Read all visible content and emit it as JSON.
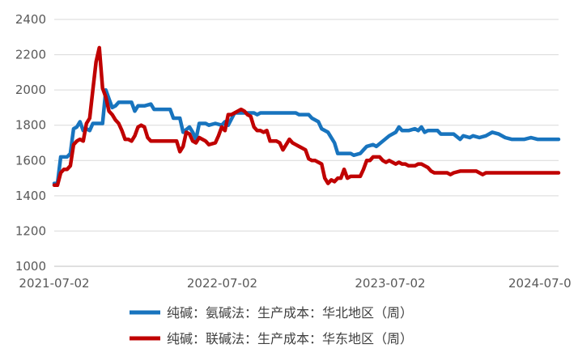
{
  "chart_data": {
    "type": "line",
    "x_ticks": [
      "2021-07-02",
      "2022-07-02",
      "2023-07-02",
      "2024-07-0"
    ],
    "y_ticks": [
      "1000",
      "1200",
      "1400",
      "1600",
      "1800",
      "2000",
      "2200",
      "2400"
    ],
    "ylim": [
      1000,
      2400
    ],
    "xlim": [
      "2021-07-02",
      "2024-07-02"
    ],
    "grid": "horizontal",
    "legend_position": "bottom",
    "series": [
      {
        "name": "纯碱：氨碱法：生产成本：华北地区（周）",
        "color": "#1874be",
        "points": [
          [
            "2021-07-02",
            1470
          ],
          [
            "2021-07-09",
            1470
          ],
          [
            "2021-07-16",
            1620
          ],
          [
            "2021-07-30",
            1620
          ],
          [
            "2021-08-06",
            1640
          ],
          [
            "2021-08-13",
            1780
          ],
          [
            "2021-08-20",
            1790
          ],
          [
            "2021-08-27",
            1820
          ],
          [
            "2021-09-03",
            1770
          ],
          [
            "2021-09-10",
            1780
          ],
          [
            "2021-09-17",
            1770
          ],
          [
            "2021-09-24",
            1810
          ],
          [
            "2021-10-08",
            1810
          ],
          [
            "2021-10-15",
            1810
          ],
          [
            "2021-10-22",
            2000
          ],
          [
            "2021-10-29",
            1950
          ],
          [
            "2021-11-05",
            1900
          ],
          [
            "2021-11-12",
            1910
          ],
          [
            "2021-11-19",
            1930
          ],
          [
            "2021-12-03",
            1930
          ],
          [
            "2021-12-17",
            1930
          ],
          [
            "2021-12-24",
            1880
          ],
          [
            "2021-12-31",
            1910
          ],
          [
            "2022-01-14",
            1910
          ],
          [
            "2022-01-28",
            1920
          ],
          [
            "2022-02-04",
            1890
          ],
          [
            "2022-02-18",
            1890
          ],
          [
            "2022-02-25",
            1890
          ],
          [
            "2022-03-11",
            1890
          ],
          [
            "2022-03-18",
            1840
          ],
          [
            "2022-04-01",
            1840
          ],
          [
            "2022-04-08",
            1760
          ],
          [
            "2022-04-22",
            1790
          ],
          [
            "2022-04-29",
            1760
          ],
          [
            "2022-05-06",
            1720
          ],
          [
            "2022-05-13",
            1810
          ],
          [
            "2022-05-27",
            1810
          ],
          [
            "2022-06-03",
            1800
          ],
          [
            "2022-06-17",
            1810
          ],
          [
            "2022-07-01",
            1800
          ],
          [
            "2022-07-08",
            1820
          ],
          [
            "2022-07-15",
            1800
          ],
          [
            "2022-07-29",
            1870
          ],
          [
            "2022-08-12",
            1870
          ],
          [
            "2022-08-26",
            1870
          ],
          [
            "2022-09-09",
            1870
          ],
          [
            "2022-09-16",
            1860
          ],
          [
            "2022-09-23",
            1870
          ],
          [
            "2022-10-28",
            1870
          ],
          [
            "2022-11-25",
            1870
          ],
          [
            "2022-12-09",
            1870
          ],
          [
            "2022-12-16",
            1860
          ],
          [
            "2023-01-06",
            1860
          ],
          [
            "2023-01-13",
            1840
          ],
          [
            "2023-01-27",
            1820
          ],
          [
            "2023-02-03",
            1780
          ],
          [
            "2023-02-17",
            1760
          ],
          [
            "2023-03-03",
            1700
          ],
          [
            "2023-03-10",
            1640
          ],
          [
            "2023-03-24",
            1640
          ],
          [
            "2023-04-07",
            1640
          ],
          [
            "2023-04-14",
            1630
          ],
          [
            "2023-04-28",
            1640
          ],
          [
            "2023-05-05",
            1660
          ],
          [
            "2023-05-12",
            1680
          ],
          [
            "2023-05-26",
            1690
          ],
          [
            "2023-06-02",
            1680
          ],
          [
            "2023-06-16",
            1710
          ],
          [
            "2023-06-30",
            1740
          ],
          [
            "2023-07-14",
            1760
          ],
          [
            "2023-07-21",
            1790
          ],
          [
            "2023-07-28",
            1770
          ],
          [
            "2023-08-11",
            1770
          ],
          [
            "2023-08-25",
            1780
          ],
          [
            "2023-09-01",
            1770
          ],
          [
            "2023-09-08",
            1790
          ],
          [
            "2023-09-15",
            1760
          ],
          [
            "2023-09-22",
            1770
          ],
          [
            "2023-10-13",
            1770
          ],
          [
            "2023-10-20",
            1750
          ],
          [
            "2023-11-03",
            1750
          ],
          [
            "2023-11-17",
            1750
          ],
          [
            "2023-12-01",
            1720
          ],
          [
            "2023-12-08",
            1740
          ],
          [
            "2023-12-22",
            1730
          ],
          [
            "2023-12-29",
            1740
          ],
          [
            "2024-01-12",
            1730
          ],
          [
            "2024-01-26",
            1740
          ],
          [
            "2024-02-09",
            1760
          ],
          [
            "2024-02-23",
            1750
          ],
          [
            "2024-03-08",
            1730
          ],
          [
            "2024-03-22",
            1720
          ],
          [
            "2024-04-05",
            1720
          ],
          [
            "2024-04-19",
            1720
          ],
          [
            "2024-05-03",
            1730
          ],
          [
            "2024-05-17",
            1720
          ],
          [
            "2024-06-07",
            1720
          ],
          [
            "2024-07-02",
            1720
          ]
        ]
      },
      {
        "name": "纯碱：联碱法：生产成本：华东地区（周）",
        "color": "#c00000",
        "points": [
          [
            "2021-07-02",
            1460
          ],
          [
            "2021-07-09",
            1460
          ],
          [
            "2021-07-16",
            1530
          ],
          [
            "2021-07-23",
            1550
          ],
          [
            "2021-07-30",
            1550
          ],
          [
            "2021-08-06",
            1570
          ],
          [
            "2021-08-13",
            1690
          ],
          [
            "2021-08-20",
            1710
          ],
          [
            "2021-08-27",
            1720
          ],
          [
            "2021-09-03",
            1710
          ],
          [
            "2021-09-10",
            1810
          ],
          [
            "2021-09-17",
            1840
          ],
          [
            "2021-09-24",
            2000
          ],
          [
            "2021-10-01",
            2160
          ],
          [
            "2021-10-08",
            2240
          ],
          [
            "2021-10-15",
            2010
          ],
          [
            "2021-10-22",
            1960
          ],
          [
            "2021-10-29",
            1880
          ],
          [
            "2021-11-05",
            1860
          ],
          [
            "2021-11-12",
            1830
          ],
          [
            "2021-11-19",
            1810
          ],
          [
            "2021-11-26",
            1770
          ],
          [
            "2021-12-03",
            1720
          ],
          [
            "2021-12-10",
            1720
          ],
          [
            "2021-12-17",
            1710
          ],
          [
            "2021-12-24",
            1740
          ],
          [
            "2021-12-31",
            1790
          ],
          [
            "2022-01-07",
            1800
          ],
          [
            "2022-01-14",
            1790
          ],
          [
            "2022-01-21",
            1730
          ],
          [
            "2022-01-28",
            1710
          ],
          [
            "2022-02-11",
            1710
          ],
          [
            "2022-02-25",
            1710
          ],
          [
            "2022-03-11",
            1710
          ],
          [
            "2022-03-25",
            1710
          ],
          [
            "2022-04-01",
            1650
          ],
          [
            "2022-04-08",
            1680
          ],
          [
            "2022-04-15",
            1760
          ],
          [
            "2022-04-22",
            1750
          ],
          [
            "2022-04-29",
            1710
          ],
          [
            "2022-05-06",
            1700
          ],
          [
            "2022-05-13",
            1730
          ],
          [
            "2022-05-27",
            1710
          ],
          [
            "2022-06-03",
            1690
          ],
          [
            "2022-06-17",
            1700
          ],
          [
            "2022-06-24",
            1740
          ],
          [
            "2022-07-01",
            1790
          ],
          [
            "2022-07-08",
            1770
          ],
          [
            "2022-07-15",
            1860
          ],
          [
            "2022-07-22",
            1860
          ],
          [
            "2022-07-29",
            1870
          ],
          [
            "2022-08-12",
            1890
          ],
          [
            "2022-08-19",
            1880
          ],
          [
            "2022-08-26",
            1860
          ],
          [
            "2022-09-02",
            1850
          ],
          [
            "2022-09-09",
            1790
          ],
          [
            "2022-09-16",
            1770
          ],
          [
            "2022-09-23",
            1770
          ],
          [
            "2022-09-30",
            1760
          ],
          [
            "2022-10-07",
            1770
          ],
          [
            "2022-10-14",
            1710
          ],
          [
            "2022-10-28",
            1710
          ],
          [
            "2022-11-04",
            1700
          ],
          [
            "2022-11-11",
            1660
          ],
          [
            "2022-11-18",
            1690
          ],
          [
            "2022-11-25",
            1720
          ],
          [
            "2022-12-02",
            1700
          ],
          [
            "2022-12-09",
            1690
          ],
          [
            "2022-12-16",
            1680
          ],
          [
            "2022-12-23",
            1670
          ],
          [
            "2022-12-30",
            1660
          ],
          [
            "2023-01-06",
            1610
          ],
          [
            "2023-01-13",
            1600
          ],
          [
            "2023-01-20",
            1600
          ],
          [
            "2023-01-27",
            1590
          ],
          [
            "2023-02-03",
            1580
          ],
          [
            "2023-02-10",
            1500
          ],
          [
            "2023-02-17",
            1470
          ],
          [
            "2023-02-24",
            1490
          ],
          [
            "2023-03-03",
            1480
          ],
          [
            "2023-03-10",
            1500
          ],
          [
            "2023-03-17",
            1500
          ],
          [
            "2023-03-24",
            1550
          ],
          [
            "2023-03-31",
            1500
          ],
          [
            "2023-04-07",
            1510
          ],
          [
            "2023-04-14",
            1510
          ],
          [
            "2023-04-28",
            1510
          ],
          [
            "2023-05-05",
            1550
          ],
          [
            "2023-05-12",
            1600
          ],
          [
            "2023-05-19",
            1600
          ],
          [
            "2023-05-26",
            1620
          ],
          [
            "2023-06-02",
            1620
          ],
          [
            "2023-06-09",
            1620
          ],
          [
            "2023-06-16",
            1600
          ],
          [
            "2023-06-23",
            1590
          ],
          [
            "2023-06-30",
            1600
          ],
          [
            "2023-07-07",
            1590
          ],
          [
            "2023-07-14",
            1580
          ],
          [
            "2023-07-21",
            1590
          ],
          [
            "2023-07-28",
            1580
          ],
          [
            "2023-08-04",
            1580
          ],
          [
            "2023-08-11",
            1570
          ],
          [
            "2023-08-25",
            1570
          ],
          [
            "2023-09-01",
            1580
          ],
          [
            "2023-09-08",
            1580
          ],
          [
            "2023-09-15",
            1570
          ],
          [
            "2023-09-22",
            1560
          ],
          [
            "2023-09-29",
            1540
          ],
          [
            "2023-10-06",
            1530
          ],
          [
            "2023-10-20",
            1530
          ],
          [
            "2023-11-03",
            1530
          ],
          [
            "2023-11-10",
            1520
          ],
          [
            "2023-11-17",
            1530
          ],
          [
            "2023-12-01",
            1540
          ],
          [
            "2023-12-15",
            1540
          ],
          [
            "2023-12-22",
            1540
          ],
          [
            "2024-01-05",
            1540
          ],
          [
            "2024-01-12",
            1530
          ],
          [
            "2024-01-19",
            1520
          ],
          [
            "2024-01-26",
            1530
          ],
          [
            "2024-02-09",
            1530
          ],
          [
            "2024-02-23",
            1530
          ],
          [
            "2024-03-08",
            1530
          ],
          [
            "2024-07-02",
            1530
          ]
        ]
      }
    ]
  }
}
